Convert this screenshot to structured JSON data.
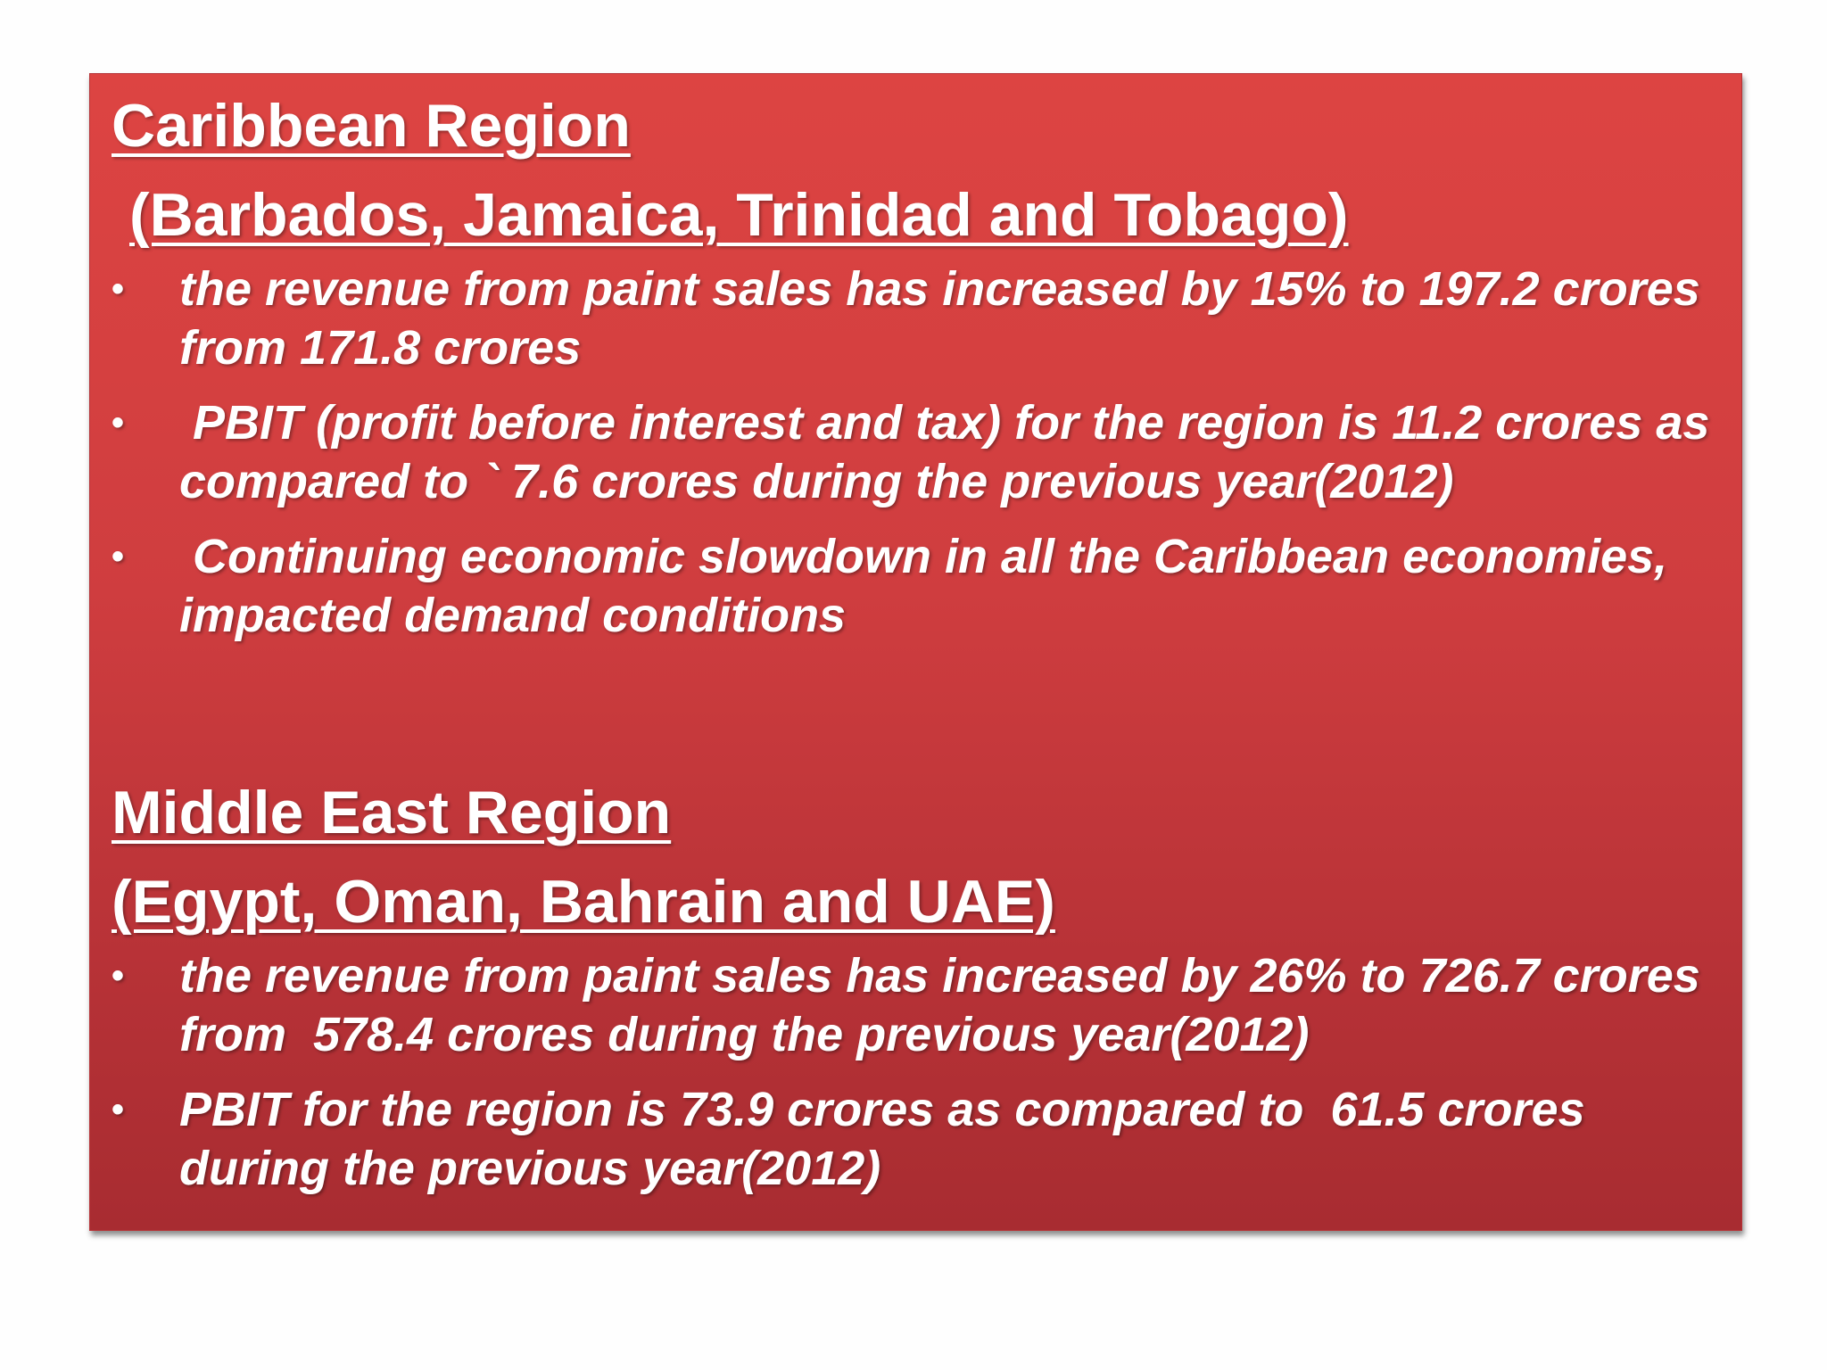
{
  "caribbean": {
    "title": "Caribbean Region",
    "countries": "(Barbados, Jamaica, Trinidad and Tobago)",
    "points": [
      "the revenue from paint sales has increased by 15% to 197.2 crores from 171.8 crores",
      " PBIT (profit before interest and tax) for the region is 11.2 crores as compared to ` 7.6 crores during the previous year(2012)",
      " Continuing economic slowdown in all the Caribbean economies, impacted demand conditions"
    ]
  },
  "middle_east": {
    "title": "Middle East Region",
    "countries": "(Egypt, Oman, Bahrain and UAE)",
    "points": [
      "the revenue from paint sales has increased by 26% to 726.7 crores from  578.4 crores during the previous year(2012)",
      "PBIT for the region is 73.9 crores as compared to  61.5 crores during the previous year(2012)"
    ]
  },
  "bullet_symbol": "•",
  "colors": {
    "panel_top": "#dd4442",
    "panel_bottom": "#a82c31",
    "text": "#ffffff"
  }
}
